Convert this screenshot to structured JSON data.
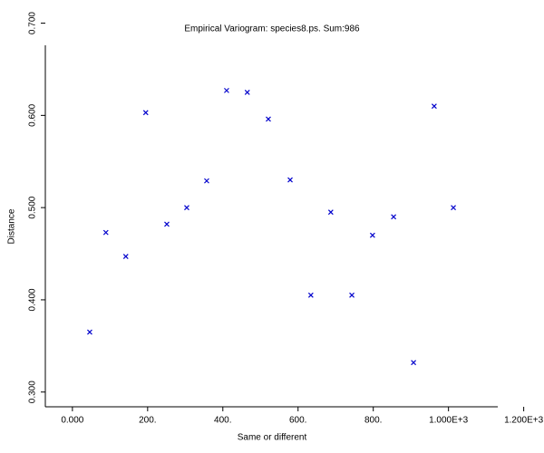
{
  "chart_data": {
    "type": "scatter",
    "title": "Empirical Variogram: species8.ps. Sum:986",
    "x_label": "Same or different",
    "y_label": "Distance",
    "color": "#0000cc",
    "marker": "x",
    "x": [
      46,
      89,
      142,
      195,
      251,
      304,
      357,
      410,
      465,
      521,
      579,
      634,
      687,
      743,
      798,
      854,
      907,
      962,
      1013
    ],
    "values": [
      0.365,
      0.473,
      0.447,
      0.603,
      0.482,
      0.5,
      0.529,
      0.627,
      0.625,
      0.596,
      0.53,
      0.405,
      0.495,
      0.405,
      0.47,
      0.49,
      0.332,
      0.61,
      0.5
    ],
    "xlim": [
      -72,
      1131
    ],
    "ylim": [
      0.284,
      0.676
    ],
    "xticks": [
      {
        "value": 0,
        "label": "0.000"
      },
      {
        "value": 200,
        "label": "200."
      },
      {
        "value": 400,
        "label": "400."
      },
      {
        "value": 600,
        "label": "600."
      },
      {
        "value": 800,
        "label": "800."
      },
      {
        "value": 1000,
        "label": "1.000E+3"
      },
      {
        "value": 1200,
        "label": "1.200E+3"
      }
    ],
    "yticks": [
      {
        "value": 0.3,
        "label": "0.300"
      },
      {
        "value": 0.4,
        "label": "0.400"
      },
      {
        "value": 0.5,
        "label": "0.500"
      },
      {
        "value": 0.6,
        "label": "0.600"
      },
      {
        "value": 0.7,
        "label": "0.700"
      }
    ]
  }
}
